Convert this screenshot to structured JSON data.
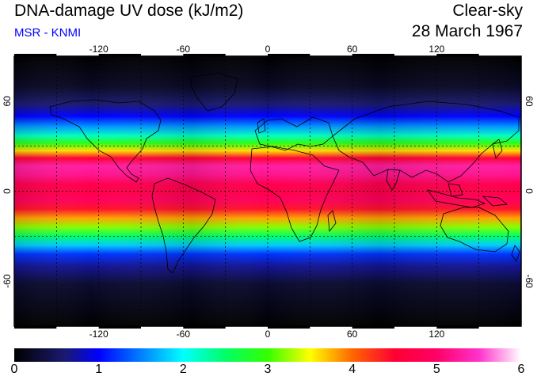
{
  "header": {
    "title": "DNA-damage UV dose (kJ/m2)",
    "subtitle": "MSR - KNMI",
    "condition": "Clear-sky",
    "date": "28 March 1967"
  },
  "colors": {
    "subtitle": "#0000ff",
    "frame": "#000000",
    "grid": "#000000"
  },
  "map": {
    "projection": "equirectangular",
    "lon_range": [
      -180,
      180
    ],
    "lat_range": [
      -90,
      90
    ],
    "lon_ticks": [
      "-120",
      "-60",
      "0",
      "60",
      "120"
    ],
    "lat_ticks": [
      "60",
      "0",
      "-60"
    ],
    "graticule_lon": [
      -150,
      -120,
      -90,
      -60,
      -30,
      0,
      30,
      60,
      90,
      120,
      150
    ],
    "graticule_lat": [
      -30,
      0,
      30
    ],
    "grid_style": "dashed",
    "coastlines": "black"
  },
  "colorbar": {
    "min": 0,
    "max": 6,
    "labels": [
      "0",
      "1",
      "2",
      "3",
      "4",
      "5",
      "6"
    ],
    "stops": [
      {
        "value": 0.0,
        "color": "#000000"
      },
      {
        "value": 0.6,
        "color": "#1a1a70"
      },
      {
        "value": 1.0,
        "color": "#0000ff"
      },
      {
        "value": 1.6,
        "color": "#0099ff"
      },
      {
        "value": 2.0,
        "color": "#00ffff"
      },
      {
        "value": 2.5,
        "color": "#00ff66"
      },
      {
        "value": 3.0,
        "color": "#33ff00"
      },
      {
        "value": 3.5,
        "color": "#ffff00"
      },
      {
        "value": 4.0,
        "color": "#ff6600"
      },
      {
        "value": 4.5,
        "color": "#ff0033"
      },
      {
        "value": 5.0,
        "color": "#ff0066"
      },
      {
        "value": 5.5,
        "color": "#ff33cc"
      },
      {
        "value": 6.0,
        "color": "#ffffff"
      }
    ]
  },
  "field_profile": [
    {
      "lat": 90,
      "value": 0.0
    },
    {
      "lat": 70,
      "value": 0.2
    },
    {
      "lat": 58,
      "value": 0.6
    },
    {
      "lat": 50,
      "value": 1.0
    },
    {
      "lat": 43,
      "value": 1.6
    },
    {
      "lat": 37,
      "value": 2.2
    },
    {
      "lat": 32,
      "value": 2.9
    },
    {
      "lat": 27,
      "value": 3.6
    },
    {
      "lat": 22,
      "value": 4.5
    },
    {
      "lat": 17,
      "value": 5.3
    },
    {
      "lat": 11,
      "value": 5.2
    },
    {
      "lat": 5,
      "value": 4.8
    },
    {
      "lat": 0,
      "value": 4.7
    },
    {
      "lat": -6,
      "value": 4.9
    },
    {
      "lat": -12,
      "value": 4.4
    },
    {
      "lat": -18,
      "value": 3.8
    },
    {
      "lat": -24,
      "value": 3.2
    },
    {
      "lat": -30,
      "value": 2.5
    },
    {
      "lat": -36,
      "value": 1.8
    },
    {
      "lat": -42,
      "value": 1.2
    },
    {
      "lat": -50,
      "value": 0.7
    },
    {
      "lat": -62,
      "value": 0.25
    },
    {
      "lat": -90,
      "value": 0.0
    }
  ]
}
